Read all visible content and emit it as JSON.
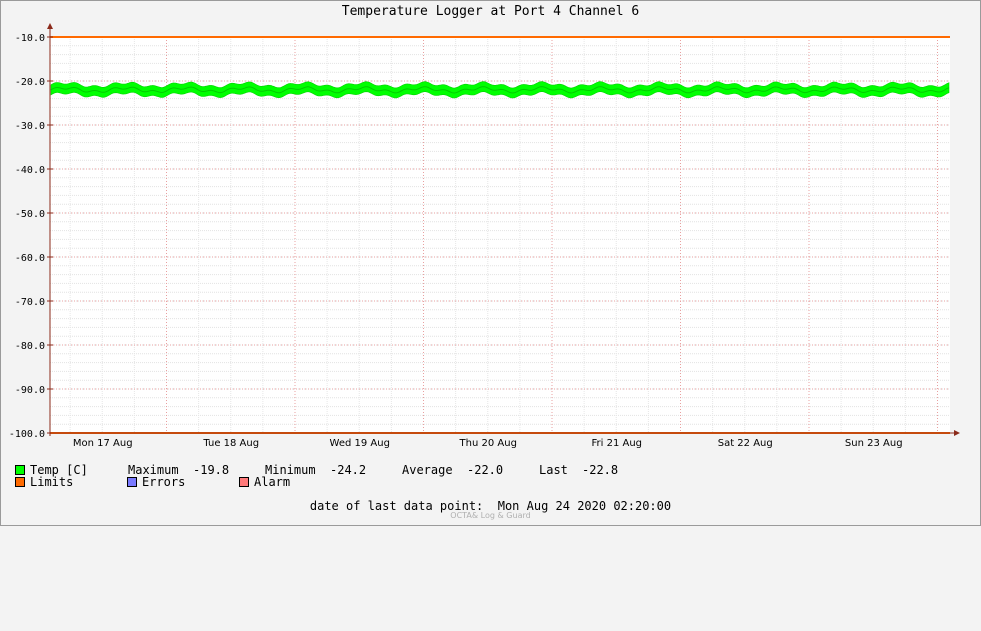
{
  "chart_data": {
    "type": "line",
    "title": "Temperature Logger at Port 4 Channel 6",
    "ylim": [
      -100.0,
      -10.0
    ],
    "y_ticks": [
      "-10.0",
      "-20.0",
      "-30.0",
      "-40.0",
      "-50.0",
      "-60.0",
      "-70.0",
      "-80.0",
      "-90.0",
      "-100.0"
    ],
    "x_ticks": [
      "Mon 17 Aug",
      "Tue 18 Aug",
      "Wed 19 Aug",
      "Thu 20 Aug",
      "Fri 21 Aug",
      "Sat 22 Aug",
      "Sun 23 Aug"
    ],
    "grid": true,
    "series": [
      {
        "name": "Temp [C]",
        "color": "#00ff00",
        "mean": -22.0,
        "max": -19.8,
        "min": -24.2,
        "last": -22.8
      },
      {
        "name": "Limits",
        "color": "#ff6a00",
        "upper": -10.0,
        "lower": -100.0
      }
    ]
  },
  "legend": {
    "temp_label": "Temp [C]",
    "max_label": "Maximum",
    "max_value": "-19.8",
    "min_label": "Minimum",
    "min_value": "-24.2",
    "avg_label": "Average",
    "avg_value": "-22.0",
    "last_label": "Last",
    "last_value": "-22.8",
    "limits_label": "Limits",
    "errors_label": "Errors",
    "alarm_label": "Alarm"
  },
  "colors": {
    "temp": "#00ff00",
    "limits": "#ff6a00",
    "errors": "#7a7aff",
    "alarm": "#ff7a7a",
    "axis_arrow": "#8b2a1a"
  },
  "footer": {
    "last_point_label": "date of last data point:",
    "last_point_value": "Mon Aug 24 2020 02:20:00",
    "watermark": "OCTA& Log & Guard"
  }
}
